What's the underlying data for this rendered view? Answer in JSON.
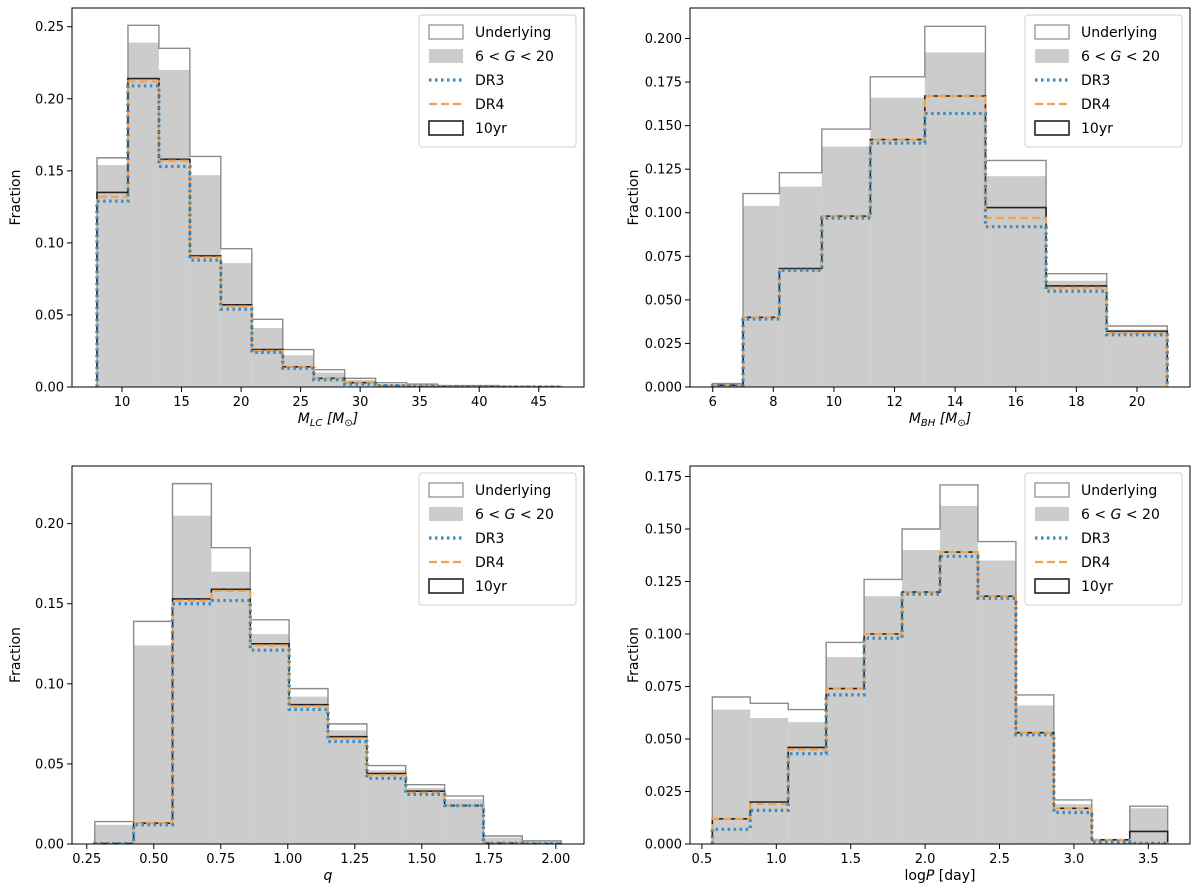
{
  "legend": {
    "underlying": "Underlying",
    "mag_cut": "6 < G < 20",
    "dr3": "DR3",
    "dr4": "DR4",
    "yr10": "10yr"
  },
  "colors": {
    "underlying": "#8c8c8c",
    "mag_cut": "#cccccc",
    "dr3": "#3b8bc2",
    "dr4": "#f5a04a",
    "yr10": "#222222"
  },
  "chart_data": [
    {
      "type": "bar",
      "histogram": true,
      "ylabel": "Fraction",
      "xlabel": "M_LC [M☉]",
      "xlabel_main": "M",
      "xlabel_sub": "LC",
      "xlabel_unit": "[M",
      "xlabel_unit_sub": "⊙",
      "xlabel_unit_close": "]",
      "xlim": [
        5.8,
        48.8
      ],
      "ylim": [
        0,
        0.263
      ],
      "xticks": [
        10,
        15,
        20,
        25,
        30,
        35,
        40,
        45
      ],
      "xtick_labels": [
        "10",
        "15",
        "20",
        "25",
        "30",
        "35",
        "40",
        "45"
      ],
      "yticks": [
        0,
        0.05,
        0.1,
        0.15,
        0.2,
        0.25
      ],
      "ytick_labels": [
        "0.00",
        "0.05",
        "0.10",
        "0.15",
        "0.20",
        "0.25"
      ],
      "bin_edges": [
        7.9,
        10.5,
        13.1,
        15.7,
        18.3,
        20.9,
        23.5,
        26.1,
        28.7,
        31.3,
        33.9,
        36.5,
        39.1,
        41.7,
        44.3,
        46.9
      ],
      "series": [
        {
          "name": "Underlying",
          "values": [
            0.159,
            0.251,
            0.235,
            0.16,
            0.096,
            0.047,
            0.026,
            0.012,
            0.006,
            0.003,
            0.002,
            0.001,
            0.001,
            0.0005,
            0.0003
          ]
        },
        {
          "name": "6 < G < 20",
          "values": [
            0.154,
            0.239,
            0.22,
            0.147,
            0.086,
            0.041,
            0.022,
            0.01,
            0.005,
            0.002,
            0.001,
            0.001,
            0.0005,
            0.0003,
            0.0002
          ]
        },
        {
          "name": "DR3",
          "values": [
            0.129,
            0.209,
            0.153,
            0.088,
            0.054,
            0.024,
            0.013,
            0.005,
            0.002,
            0.001,
            0.0005,
            0.0002,
            0.0001,
            0.0001,
            0.0001
          ]
        },
        {
          "name": "DR4",
          "values": [
            0.132,
            0.212,
            0.157,
            0.09,
            0.056,
            0.025,
            0.014,
            0.006,
            0.003,
            0.001,
            0.0005,
            0.0002,
            0.0001,
            0.0001,
            0.0001
          ]
        },
        {
          "name": "10yr",
          "values": [
            0.135,
            0.214,
            0.158,
            0.091,
            0.057,
            0.026,
            0.014,
            0.006,
            0.003,
            0.001,
            0.0005,
            0.0002,
            0.0001,
            0.0001,
            0.0001
          ]
        }
      ]
    },
    {
      "type": "bar",
      "histogram": true,
      "ylabel": "Fraction",
      "xlabel": "M_BH [M☉]",
      "xlabel_main": "M",
      "xlabel_sub": "BH",
      "xlabel_unit": "[M",
      "xlabel_unit_sub": "⊙",
      "xlabel_unit_close": "]",
      "xlim": [
        5.25,
        21.75
      ],
      "ylim": [
        0,
        0.2175
      ],
      "xticks": [
        6,
        8,
        10,
        12,
        14,
        16,
        18,
        20
      ],
      "xtick_labels": [
        "6",
        "8",
        "10",
        "12",
        "14",
        "16",
        "18",
        "20"
      ],
      "yticks": [
        0,
        0.025,
        0.05,
        0.075,
        0.1,
        0.125,
        0.15,
        0.175,
        0.2
      ],
      "ytick_labels": [
        "0.000",
        "0.025",
        "0.050",
        "0.075",
        "0.100",
        "0.125",
        "0.150",
        "0.175",
        "0.200"
      ],
      "bin_edges": [
        6.0,
        7.0,
        8.2,
        9.6,
        11.2,
        13.0,
        15.0,
        17.0,
        19.0,
        21.0
      ],
      "series": [
        {
          "name": "Underlying",
          "values": [
            0.002,
            0.111,
            0.123,
            0.148,
            0.178,
            0.207,
            0.13,
            0.065,
            0.035
          ]
        },
        {
          "name": "6 < G < 20",
          "values": [
            0.002,
            0.104,
            0.115,
            0.138,
            0.166,
            0.192,
            0.121,
            0.061,
            0.033
          ]
        },
        {
          "name": "DR3",
          "values": [
            0.001,
            0.039,
            0.067,
            0.097,
            0.14,
            0.157,
            0.092,
            0.055,
            0.03
          ]
        },
        {
          "name": "DR4",
          "values": [
            0.001,
            0.04,
            0.067,
            0.098,
            0.142,
            0.167,
            0.097,
            0.057,
            0.031
          ]
        },
        {
          "name": "10yr",
          "values": [
            0.001,
            0.04,
            0.068,
            0.098,
            0.142,
            0.167,
            0.103,
            0.058,
            0.032
          ]
        }
      ]
    },
    {
      "type": "bar",
      "histogram": true,
      "ylabel": "Fraction",
      "xlabel": "q",
      "xlabel_main": "q",
      "xlabel_sub": "",
      "xlabel_unit": "",
      "xlabel_unit_sub": "",
      "xlabel_unit_close": "",
      "xlim": [
        0.195,
        2.105
      ],
      "ylim": [
        0,
        0.236
      ],
      "xticks": [
        0.25,
        0.5,
        0.75,
        1.0,
        1.25,
        1.5,
        1.75,
        2.0
      ],
      "xtick_labels": [
        "0.25",
        "0.50",
        "0.75",
        "1.00",
        "1.25",
        "1.50",
        "1.75",
        "2.00"
      ],
      "yticks": [
        0,
        0.05,
        0.1,
        0.15,
        0.2
      ],
      "ytick_labels": [
        "0.00",
        "0.05",
        "0.10",
        "0.15",
        "0.20"
      ],
      "bin_edges": [
        0.28,
        0.425,
        0.57,
        0.715,
        0.86,
        1.005,
        1.15,
        1.295,
        1.44,
        1.585,
        1.73,
        1.875,
        2.02
      ],
      "series": [
        {
          "name": "Underlying",
          "values": [
            0.014,
            0.139,
            0.225,
            0.185,
            0.14,
            0.097,
            0.075,
            0.049,
            0.037,
            0.03,
            0.005,
            0.002
          ]
        },
        {
          "name": "6 < G < 20",
          "values": [
            0.012,
            0.124,
            0.205,
            0.17,
            0.131,
            0.092,
            0.071,
            0.046,
            0.035,
            0.028,
            0.004,
            0.002
          ]
        },
        {
          "name": "DR3",
          "values": [
            0.0003,
            0.012,
            0.15,
            0.152,
            0.121,
            0.084,
            0.064,
            0.041,
            0.031,
            0.024,
            0.0005,
            0.0002
          ]
        },
        {
          "name": "DR4",
          "values": [
            0.0003,
            0.013,
            0.152,
            0.158,
            0.124,
            0.086,
            0.066,
            0.043,
            0.032,
            0.024,
            0.0005,
            0.0002
          ]
        },
        {
          "name": "10yr",
          "values": [
            0.0003,
            0.013,
            0.153,
            0.159,
            0.125,
            0.087,
            0.067,
            0.044,
            0.033,
            0.024,
            0.0005,
            0.0002
          ]
        }
      ]
    },
    {
      "type": "bar",
      "histogram": true,
      "ylabel": "Fraction",
      "xlabel": "logP [day]",
      "xlabel_main": "log",
      "xlabel_sub": "",
      "xlabel_unit": "",
      "xlabel_unit_sub": "",
      "xlabel_unit_close": "",
      "xlabel_italic_part": "P",
      "xlabel_tail": " [day]",
      "xlim": [
        0.42,
        3.78
      ],
      "ylim": [
        0,
        0.18
      ],
      "xticks": [
        0.5,
        1.0,
        1.5,
        2.0,
        2.5,
        3.0,
        3.5
      ],
      "xtick_labels": [
        "0.5",
        "1.0",
        "1.5",
        "2.0",
        "2.5",
        "3.0",
        "3.5"
      ],
      "yticks": [
        0,
        0.025,
        0.05,
        0.075,
        0.1,
        0.125,
        0.15,
        0.175
      ],
      "ytick_labels": [
        "0.000",
        "0.025",
        "0.050",
        "0.075",
        "0.100",
        "0.125",
        "0.150",
        "0.175"
      ],
      "bin_edges": [
        0.57,
        0.825,
        1.08,
        1.335,
        1.59,
        1.845,
        2.1,
        2.355,
        2.61,
        2.865,
        3.12,
        3.375,
        3.63
      ],
      "series": [
        {
          "name": "Underlying",
          "values": [
            0.07,
            0.067,
            0.064,
            0.096,
            0.126,
            0.15,
            0.171,
            0.144,
            0.071,
            0.021,
            0.002,
            0.018
          ]
        },
        {
          "name": "6 < G < 20",
          "values": [
            0.064,
            0.06,
            0.058,
            0.089,
            0.118,
            0.14,
            0.161,
            0.135,
            0.066,
            0.019,
            0.002,
            0.017
          ]
        },
        {
          "name": "DR3",
          "values": [
            0.007,
            0.016,
            0.043,
            0.071,
            0.098,
            0.119,
            0.137,
            0.117,
            0.052,
            0.015,
            0.001,
            0.0003
          ]
        },
        {
          "name": "DR4",
          "values": [
            0.012,
            0.019,
            0.045,
            0.074,
            0.1,
            0.12,
            0.139,
            0.118,
            0.053,
            0.017,
            0.002,
            0.0003
          ]
        },
        {
          "name": "10yr",
          "values": [
            0.012,
            0.02,
            0.046,
            0.074,
            0.1,
            0.12,
            0.139,
            0.118,
            0.053,
            0.017,
            0.002,
            0.006
          ]
        }
      ]
    }
  ]
}
